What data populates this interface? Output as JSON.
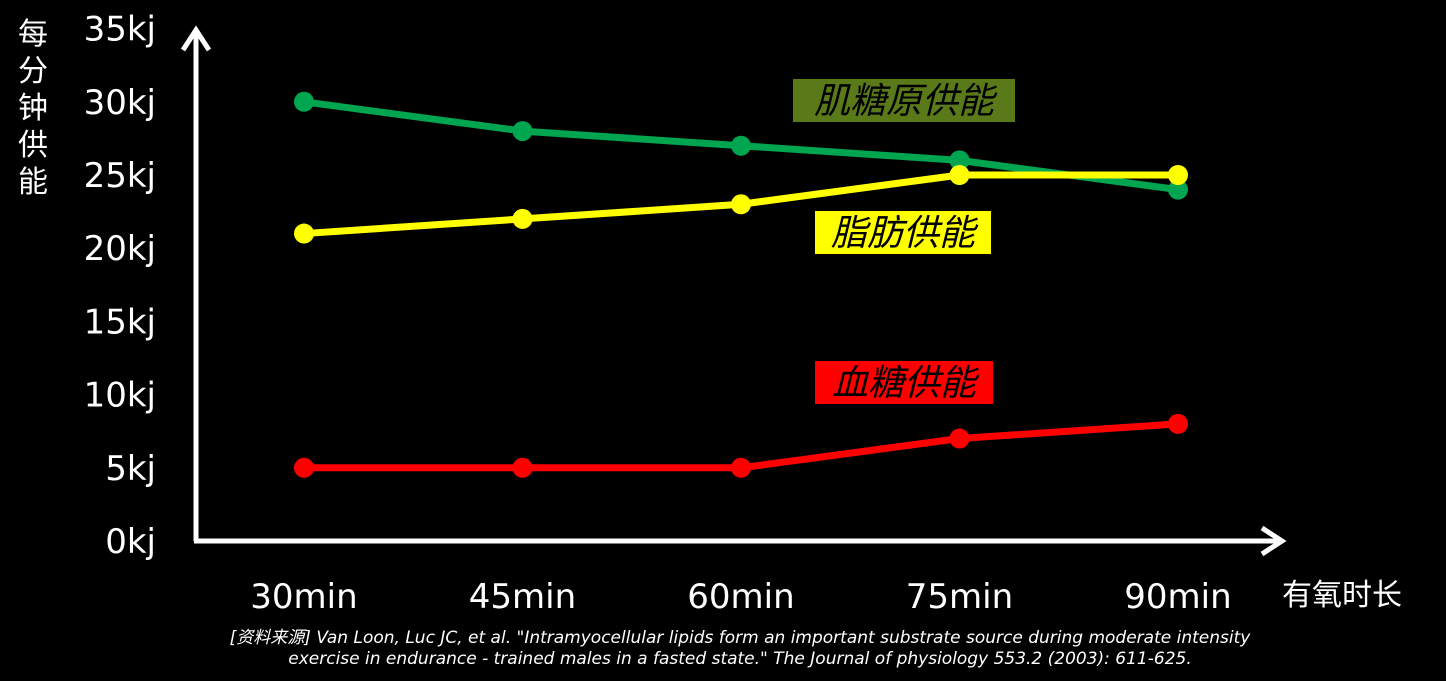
{
  "chart_data": {
    "type": "line",
    "ylabel": "每分钟供能",
    "xlabel": "有氧时长",
    "categories": [
      "30min",
      "45min",
      "60min",
      "75min",
      "90min"
    ],
    "yticks": [
      "0kj",
      "5kj",
      "10kj",
      "15kj",
      "20kj",
      "25kj",
      "30kj",
      "35kj"
    ],
    "ylim": [
      0,
      35
    ],
    "grid": false,
    "series": [
      {
        "name": "肌糖原供能",
        "values": [
          30,
          28,
          27,
          26,
          24
        ],
        "color": "#00a550",
        "label_bg": "#5a7a1a",
        "label_color": "#000000"
      },
      {
        "name": "脂肪供能",
        "values": [
          21,
          22,
          23,
          25,
          25
        ],
        "color": "#ffff00",
        "label_bg": "#ffff00",
        "label_color": "#000000"
      },
      {
        "name": "血糖供能",
        "values": [
          5,
          5,
          5,
          7,
          8
        ],
        "color": "#ff0000",
        "label_bg": "#ff0000",
        "label_color": "#000000"
      }
    ]
  },
  "source_note": {
    "line1": "[资料来源] Van Loon, Luc JC, et al. \"Intramyocellular lipids form an important substrate source during moderate intensity",
    "line2": "exercise in endurance - trained males in a fasted state.\" The Journal of physiology 553.2 (2003): 611-625."
  }
}
